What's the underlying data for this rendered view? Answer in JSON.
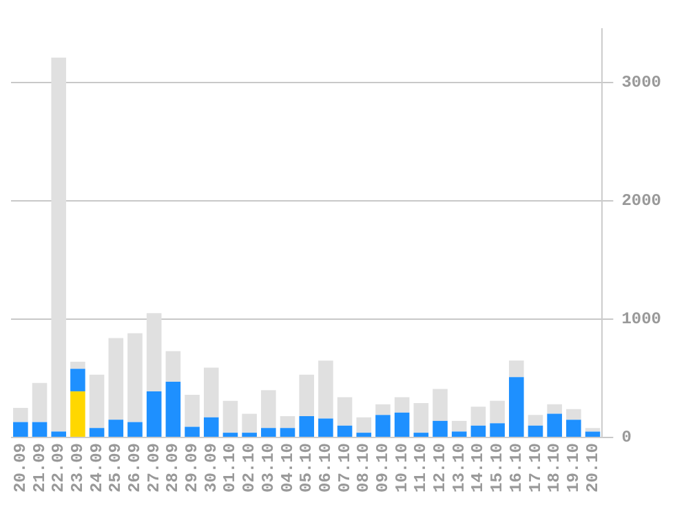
{
  "chart_data": {
    "type": "bar",
    "stacked": true,
    "categories": [
      "20.09",
      "21.09",
      "22.09",
      "23.09",
      "24.09",
      "25.09",
      "26.09",
      "27.09",
      "28.09",
      "29.09",
      "30.09",
      "01.10",
      "02.10",
      "03.10",
      "04.10",
      "05.10",
      "06.10",
      "07.10",
      "08.10",
      "09.10",
      "10.10",
      "11.10",
      "12.10",
      "13.10",
      "14.10",
      "15.10",
      "16.10",
      "17.10",
      "18.10",
      "19.10",
      "20.10"
    ],
    "series": [
      {
        "color": "#ffd700",
        "values": [
          null,
          null,
          null,
          390,
          null,
          null,
          null,
          null,
          null,
          null,
          null,
          null,
          null,
          null,
          null,
          null,
          null,
          null,
          null,
          null,
          null,
          null,
          null,
          null,
          null,
          null,
          null,
          null,
          null,
          null,
          null
        ]
      },
      {
        "color": "#1e90ff",
        "values": [
          130,
          130,
          50,
          190,
          80,
          150,
          130,
          390,
          470,
          90,
          170,
          40,
          40,
          80,
          80,
          180,
          160,
          100,
          40,
          190,
          210,
          40,
          140,
          50,
          100,
          120,
          510,
          100,
          200,
          150,
          50
        ]
      },
      {
        "color": "#e0e0e0",
        "values": [
          120,
          330,
          3160,
          60,
          450,
          690,
          750,
          660,
          260,
          270,
          420,
          270,
          160,
          320,
          100,
          350,
          490,
          240,
          130,
          90,
          130,
          250,
          270,
          90,
          160,
          190,
          140,
          90,
          80,
          90,
          30
        ]
      }
    ],
    "ylim": [
      0,
      3450
    ],
    "yticks": [
      0,
      1000,
      2000,
      3000
    ],
    "grid": "y",
    "legend": false
  }
}
